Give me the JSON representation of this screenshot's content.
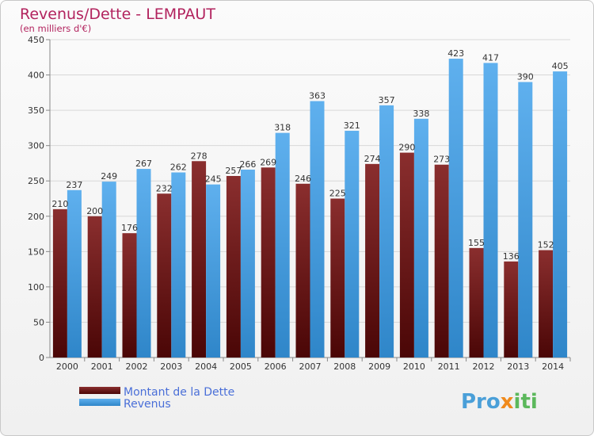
{
  "chart_data": {
    "type": "bar",
    "title": "Revenus/Dette - LEMPAUT",
    "subtitle": "(en milliers d'€)",
    "categories": [
      "2000",
      "2001",
      "2002",
      "2003",
      "2004",
      "2005",
      "2006",
      "2007",
      "2008",
      "2009",
      "2010",
      "2011",
      "2012",
      "2013",
      "2014"
    ],
    "series": [
      {
        "name": "Montant de la Dette",
        "values": [
          210,
          200,
          176,
          232,
          278,
          257,
          269,
          246,
          225,
          274,
          290,
          273,
          155,
          136,
          152
        ],
        "color": "#7a1a1a"
      },
      {
        "name": "Revenus",
        "values": [
          237,
          249,
          267,
          262,
          245,
          266,
          318,
          363,
          321,
          357,
          338,
          423,
          417,
          390,
          405
        ],
        "color": "#4fa3e3"
      }
    ],
    "ylim": [
      0,
      450
    ],
    "yticks": [
      0,
      50,
      100,
      150,
      200,
      250,
      300,
      350,
      400,
      450
    ],
    "grid": true,
    "legend_position": "bottom-left",
    "colors": {
      "title": "#b2235e",
      "legend_text": "#4a6fd8"
    }
  },
  "logo": {
    "parts": [
      "Pro",
      "x",
      "iti"
    ],
    "colors": [
      "#4a9fd8",
      "#f08a1c",
      "#5cb85c"
    ]
  }
}
